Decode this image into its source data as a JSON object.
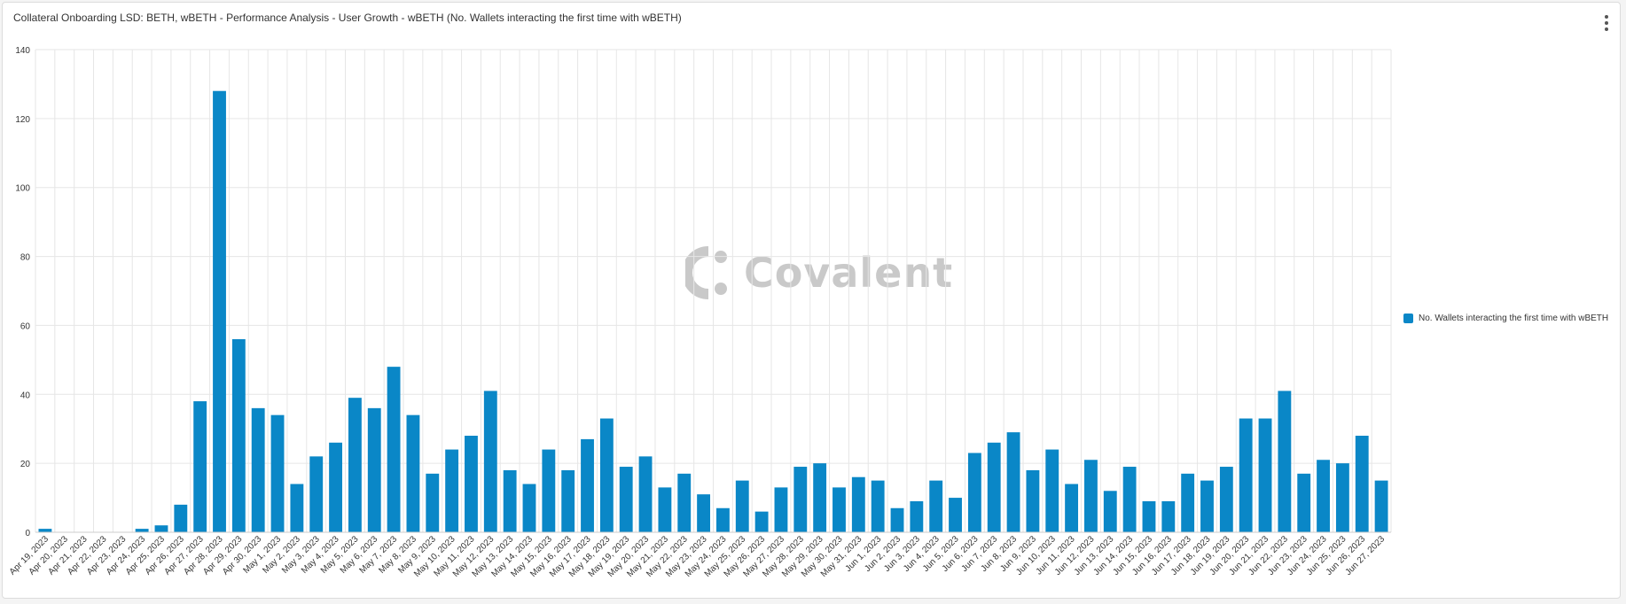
{
  "title": "Collateral Onboarding LSD: BETH, wBETH - Performance Analysis - User Growth - wBETH (No. Wallets interacting the first time with wBETH)",
  "watermark": "Covalent",
  "menu_icon": "more-vertical-icon",
  "colors": {
    "bar": "#0a87c7",
    "grid": "#e6e6e6",
    "axis": "#cccccc",
    "text": "#333333"
  },
  "chart_data": {
    "type": "bar",
    "title": "",
    "xlabel": "",
    "ylabel": "",
    "ylim": [
      0,
      140
    ],
    "yticks": [
      0,
      20,
      40,
      60,
      80,
      100,
      120,
      140
    ],
    "grid": true,
    "legend_position": "right",
    "categories": [
      "Apr 19, 2023",
      "Apr 20, 2023",
      "Apr 21, 2023",
      "Apr 22, 2023",
      "Apr 23, 2023",
      "Apr 24, 2023",
      "Apr 25, 2023",
      "Apr 26, 2023",
      "Apr 27, 2023",
      "Apr 28, 2023",
      "Apr 29, 2023",
      "Apr 30, 2023",
      "May 1, 2023",
      "May 2, 2023",
      "May 3, 2023",
      "May 4, 2023",
      "May 5, 2023",
      "May 6, 2023",
      "May 7, 2023",
      "May 8, 2023",
      "May 9, 2023",
      "May 10, 2023",
      "May 11, 2023",
      "May 12, 2023",
      "May 13, 2023",
      "May 14, 2023",
      "May 15, 2023",
      "May 16, 2023",
      "May 17, 2023",
      "May 18, 2023",
      "May 19, 2023",
      "May 20, 2023",
      "May 21, 2023",
      "May 22, 2023",
      "May 23, 2023",
      "May 24, 2023",
      "May 25, 2023",
      "May 26, 2023",
      "May 27, 2023",
      "May 28, 2023",
      "May 29, 2023",
      "May 30, 2023",
      "May 31, 2023",
      "Jun 1, 2023",
      "Jun 2, 2023",
      "Jun 3, 2023",
      "Jun 4, 2023",
      "Jun 5, 2023",
      "Jun 6, 2023",
      "Jun 7, 2023",
      "Jun 8, 2023",
      "Jun 9, 2023",
      "Jun 10, 2023",
      "Jun 11, 2023",
      "Jun 12, 2023",
      "Jun 13, 2023",
      "Jun 14, 2023",
      "Jun 15, 2023",
      "Jun 16, 2023",
      "Jun 17, 2023",
      "Jun 18, 2023",
      "Jun 19, 2023",
      "Jun 20, 2023",
      "Jun 21, 2023",
      "Jun 22, 2023",
      "Jun 23, 2023",
      "Jun 24, 2023",
      "Jun 25, 2023",
      "Jun 26, 2023",
      "Jun 27, 2023"
    ],
    "series": [
      {
        "name": "No. Wallets interacting the first time with wBETH",
        "values": [
          1,
          0,
          0,
          0,
          0,
          1,
          2,
          8,
          38,
          128,
          56,
          36,
          34,
          14,
          22,
          26,
          39,
          36,
          48,
          34,
          17,
          24,
          28,
          41,
          18,
          14,
          24,
          18,
          27,
          33,
          19,
          22,
          13,
          17,
          11,
          7,
          15,
          6,
          13,
          19,
          20,
          13,
          16,
          15,
          7,
          9,
          15,
          10,
          23,
          26,
          29,
          18,
          24,
          14,
          21,
          12,
          19,
          9,
          9,
          17,
          15,
          19,
          33,
          33,
          41,
          17,
          21,
          20,
          28,
          15
        ]
      }
    ]
  }
}
